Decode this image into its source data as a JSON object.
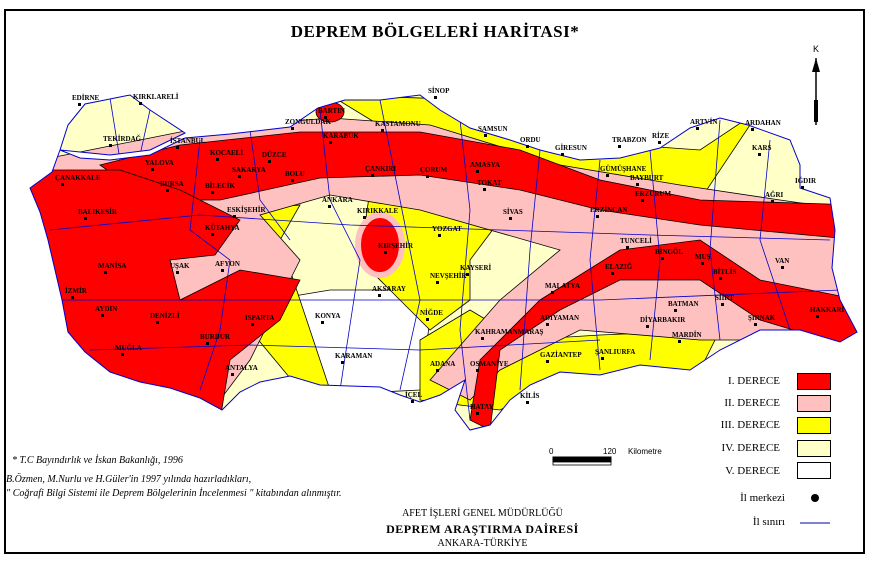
{
  "title": "DEPREM BÖLGELERİ HARİTASI*",
  "north_label": "K",
  "colors": {
    "zone1": "#ff0000",
    "zone2": "#ffc0c0",
    "zone3": "#ffff00",
    "zone4": "#ffffc8",
    "zone5": "#ffffff",
    "border": "#0000cc"
  },
  "legend": [
    {
      "label": "I. DERECE",
      "color": "#ff0000"
    },
    {
      "label": "II. DERECE",
      "color": "#ffc0c0"
    },
    {
      "label": "III. DERECE",
      "color": "#ffff00"
    },
    {
      "label": "IV. DERECE",
      "color": "#ffffc8"
    },
    {
      "label": "V. DERECE",
      "color": "#ffffff"
    }
  ],
  "legend_center": "İl merkezi",
  "legend_border": "İl sınırı",
  "scale": {
    "start": "0",
    "end": "120",
    "unit": "Kilometre"
  },
  "notes": [
    "* T.C Bayındırlık ve İskan Bakanlığı, 1996",
    "B.Özmen, M.Nurlu ve H.Güler'in 1997 yılında hazırladıkları,",
    "\" Coğrafi Bilgi Sistemi ile Deprem Bölgelerinin İncelenmesi \" kitabından alınmıştır."
  ],
  "footer": {
    "line1": "AFET İŞLERİ GENEL MÜDÜRLÜĞÜ",
    "line2": "DEPREM ARAŞTIRMA DAİRESİ",
    "line3": "ANKARA-TÜRKİYE"
  },
  "cities": [
    "EDİRNE",
    "KIRKLARELİ",
    "TEKİRDAĞ",
    "İSTANBUL",
    "ÇANAKKALE",
    "YALOVA",
    "KOCAELİ",
    "SAKARYA",
    "DÜZCE",
    "BOLU",
    "BARTIN",
    "ZONGULDAK",
    "KARABÜK",
    "KASTAMONU",
    "SİNOP",
    "SAMSUN",
    "ÇANKIRI",
    "ÇORUM",
    "AMASYA",
    "TOKAT",
    "ORDU",
    "GİRESUN",
    "TRABZON",
    "RİZE",
    "ARTVİN",
    "ARDAHAN",
    "KARS",
    "GÜMÜŞHANE",
    "BAYBURT",
    "ERZURUM",
    "IĞDIR",
    "AĞRI",
    "ERZİNCAN",
    "SİVAS",
    "YOZGAT",
    "KIRIKKALE",
    "ANKARA",
    "ESKİŞEHİR",
    "BİLECİK",
    "BURSA",
    "BALIKESİR",
    "KÜTAHYA",
    "KIRŞEHİR",
    "NEVŞEHİR",
    "KAYSERİ",
    "AKSARAY",
    "NİĞDE",
    "KONYA",
    "KARAMAN",
    "MANİSA",
    "UŞAK",
    "AFYON",
    "İZMİR",
    "AYDIN",
    "DENİZLİ",
    "ISPARTA",
    "BURDUR",
    "MUĞLA",
    "ANTALYA",
    "ADANA",
    "İÇEL",
    "OSMANİYE",
    "KAHRAMANMARAŞ",
    "HATAY",
    "KİLİS",
    "GAZİANTEP",
    "ŞANLIURFA",
    "ADIYAMAN",
    "MALATYA",
    "ELAZIĞ",
    "TUNCELİ",
    "BİNGÖL",
    "MUŞ",
    "BİTLİS",
    "VAN",
    "SİİRT",
    "BATMAN",
    "DİYARBAKIR",
    "MARDİN",
    "ŞIRNAK",
    "HAKKARİ"
  ]
}
